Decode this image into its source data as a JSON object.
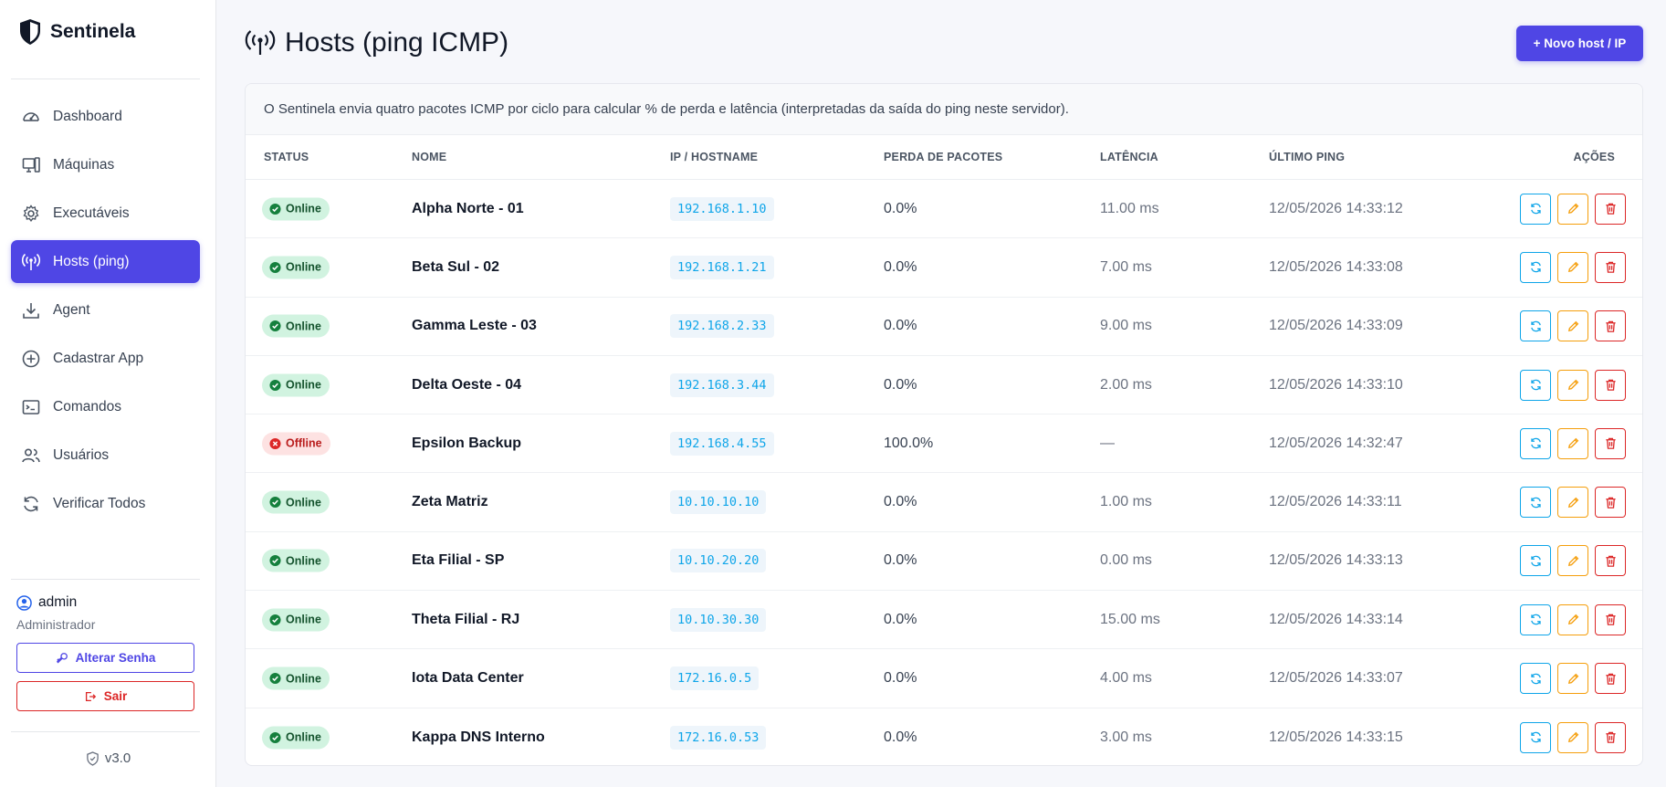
{
  "app": {
    "name": "Sentinela",
    "version": "v3.0"
  },
  "sidebar": {
    "items": [
      {
        "label": "Dashboard",
        "icon": "gauge-icon",
        "active": false
      },
      {
        "label": "Máquinas",
        "icon": "machines-icon",
        "active": false
      },
      {
        "label": "Executáveis",
        "icon": "settings-icon",
        "active": false
      },
      {
        "label": "Hosts (ping)",
        "icon": "broadcast-icon",
        "active": true
      },
      {
        "label": "Agent",
        "icon": "download-icon",
        "active": false
      },
      {
        "label": "Cadastrar App",
        "icon": "plus-circle-icon",
        "active": false
      },
      {
        "label": "Comandos",
        "icon": "terminal-icon",
        "active": false
      },
      {
        "label": "Usuários",
        "icon": "users-icon",
        "active": false
      },
      {
        "label": "Verificar Todos",
        "icon": "refresh-icon",
        "active": false
      }
    ]
  },
  "user": {
    "name": "admin",
    "role": "Administrador",
    "change_password_label": "Alterar Senha",
    "logout_label": "Sair"
  },
  "page": {
    "title": "Hosts (ping ICMP)",
    "new_host_label": "+ Novo host / IP",
    "info": "O Sentinela envia quatro pacotes ICMP por ciclo para calcular % de perda e latência (interpretadas da saída do ping neste servidor)."
  },
  "table": {
    "headers": {
      "status": "STATUS",
      "name": "NOME",
      "ip": "IP / HOSTNAME",
      "loss": "PERDA DE PACOTES",
      "latency": "LATÊNCIA",
      "last_ping": "ÚLTIMO PING",
      "actions": "AÇÕES"
    },
    "rows": [
      {
        "status": "Online",
        "name": "Alpha Norte - 01",
        "ip": "192.168.1.10",
        "loss": "0.0%",
        "latency": "11.00 ms",
        "last_ping": "12/05/2026 14:33:12"
      },
      {
        "status": "Online",
        "name": "Beta Sul - 02",
        "ip": "192.168.1.21",
        "loss": "0.0%",
        "latency": "7.00 ms",
        "last_ping": "12/05/2026 14:33:08"
      },
      {
        "status": "Online",
        "name": "Gamma Leste - 03",
        "ip": "192.168.2.33",
        "loss": "0.0%",
        "latency": "9.00 ms",
        "last_ping": "12/05/2026 14:33:09"
      },
      {
        "status": "Online",
        "name": "Delta Oeste - 04",
        "ip": "192.168.3.44",
        "loss": "0.0%",
        "latency": "2.00 ms",
        "last_ping": "12/05/2026 14:33:10"
      },
      {
        "status": "Offline",
        "name": "Epsilon Backup",
        "ip": "192.168.4.55",
        "loss": "100.0%",
        "latency": "—",
        "last_ping": "12/05/2026 14:32:47"
      },
      {
        "status": "Online",
        "name": "Zeta Matriz",
        "ip": "10.10.10.10",
        "loss": "0.0%",
        "latency": "1.00 ms",
        "last_ping": "12/05/2026 14:33:11"
      },
      {
        "status": "Online",
        "name": "Eta Filial - SP",
        "ip": "10.10.20.20",
        "loss": "0.0%",
        "latency": "0.00 ms",
        "last_ping": "12/05/2026 14:33:13"
      },
      {
        "status": "Online",
        "name": "Theta Filial - RJ",
        "ip": "10.10.30.30",
        "loss": "0.0%",
        "latency": "15.00 ms",
        "last_ping": "12/05/2026 14:33:14"
      },
      {
        "status": "Online",
        "name": "Iota Data Center",
        "ip": "172.16.0.5",
        "loss": "0.0%",
        "latency": "4.00 ms",
        "last_ping": "12/05/2026 14:33:07"
      },
      {
        "status": "Online",
        "name": "Kappa DNS Interno",
        "ip": "172.16.0.53",
        "loss": "0.0%",
        "latency": "3.00 ms",
        "last_ping": "12/05/2026 14:33:15"
      }
    ]
  },
  "colors": {
    "accent": "#4f46e5",
    "online_bg": "#d1f3e0",
    "offline_bg": "#fde2e2",
    "ip_text": "#0ea5e9",
    "edit": "#f59e0b",
    "danger": "#dc2626"
  }
}
